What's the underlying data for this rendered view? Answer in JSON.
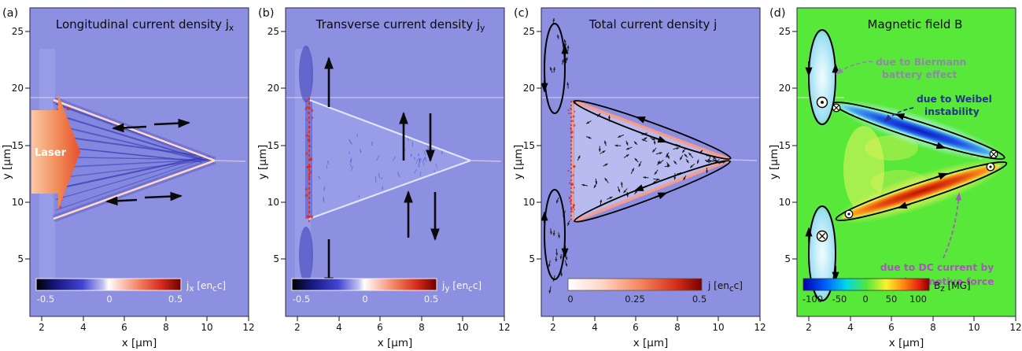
{
  "panels": {
    "a": {
      "label": "(a)",
      "title_1": "Longitudinal current density j",
      "title_sub": "x",
      "x_label": "x [μm]",
      "y_label": "y [μm]",
      "x_ticks": [
        "2",
        "4",
        "6",
        "8",
        "10",
        "12"
      ],
      "y_ticks": [
        "25",
        "20",
        "15",
        "10",
        "5"
      ],
      "laser_label": "Laser",
      "cb_ticks": [
        "-0.5",
        "0",
        "0.5"
      ],
      "cb_p1": "j",
      "cb_s1": "x",
      "cb_p2": " [en",
      "cb_s2": "c",
      "cb_p3": "c]"
    },
    "b": {
      "label": "(b)",
      "title_1": "Transverse current density j",
      "title_sub": "y",
      "x_label": "x [μm]",
      "y_label": "y [μm]",
      "x_ticks": [
        "2",
        "4",
        "6",
        "8",
        "10",
        "12"
      ],
      "y_ticks": [
        "25",
        "20",
        "15",
        "10",
        "5"
      ],
      "cb_ticks": [
        "-0.5",
        "0",
        "0.5"
      ],
      "cb_p1": "j",
      "cb_s1": "y",
      "cb_p2": " [en",
      "cb_s2": "c",
      "cb_p3": "c]"
    },
    "c": {
      "label": "(c)",
      "title_1": "Total current density j",
      "x_label": "x [μm]",
      "y_label": "y [μm]",
      "x_ticks": [
        "2",
        "4",
        "6",
        "8",
        "10",
        "12"
      ],
      "y_ticks": [
        "25",
        "20",
        "15",
        "10",
        "5"
      ],
      "cb_ticks": [
        "0",
        "0.25",
        "0.5"
      ],
      "cb_p1": "j [en",
      "cb_s1": "c",
      "cb_p2": "c]"
    },
    "d": {
      "label": "(d)",
      "title_1": "Magnetic field B",
      "x_label": "x [μm]",
      "y_label": "y [μm]",
      "x_ticks": [
        "2",
        "4",
        "6",
        "8",
        "10",
        "12"
      ],
      "y_ticks": [
        "25",
        "20",
        "15",
        "10",
        "5"
      ],
      "cb_ticks": [
        "-100",
        "-50",
        "0",
        "50",
        "100"
      ],
      "cb_p1": "B",
      "cb_s1": "z",
      "cb_p2": " [MG]",
      "ann_biermann_1": "due to Biermann",
      "ann_biermann_2": "battery effect",
      "ann_weibel_1": "due to Weibel",
      "ann_weibel_2": "instability",
      "ann_pond_1": "due to DC current by",
      "ann_pond_2": "ponderomotive force"
    }
  },
  "colors": {
    "panel_bg_purple": "#8d8fe0",
    "panel_bg_green": "#58e83a",
    "laser_orange": "#f07848",
    "annotation_gray": "#8c8ca0",
    "annotation_navy": "#24348c",
    "annotation_purple": "#a858b8",
    "arrow_black": "#000000",
    "negative_field_blue": "#1e4fe0",
    "positive_field_red": "#e04a10"
  },
  "chart_data": [
    {
      "panel": "(a)",
      "type": "heatmap",
      "title": "Longitudinal current density j_x",
      "xlabel": "x [μm]",
      "ylabel": "y [μm]",
      "x_ticks": [
        2,
        4,
        6,
        8,
        10,
        12
      ],
      "y_ticks": [
        5,
        10,
        15,
        20,
        25
      ],
      "x_range": [
        1.5,
        12
      ],
      "y_range": [
        2.5,
        27
      ],
      "colorbar": {
        "label": "j_x [e n_c c]",
        "ticks": [
          -0.5,
          0,
          0.5
        ],
        "range": [
          -0.5,
          0.5
        ],
        "colormap": "black-blue-white-red-darkred"
      },
      "features": [
        "laser arrow entering from left between y≈10 and y≈18 μm",
        "cone-shaped filamentary current structure from x≈3 μm converging to apex at x≈10 μm, y≈13.5 μm",
        "black horizontal arrow pairs marking counter-streaming longitudinal currents near upper and lower cone edges"
      ]
    },
    {
      "panel": "(b)",
      "type": "heatmap",
      "title": "Transverse current density j_y",
      "xlabel": "x [μm]",
      "ylabel": "y [μm]",
      "x_ticks": [
        2,
        4,
        6,
        8,
        10,
        12
      ],
      "y_ticks": [
        5,
        10,
        15,
        20,
        25
      ],
      "colorbar": {
        "label": "j_y [e n_c c]",
        "ticks": [
          -0.5,
          0,
          0.5
        ],
        "range": [
          -0.5,
          0.5
        ],
        "colormap": "black-blue-white-red-darkred"
      },
      "features": [
        "red layer at target front x≈2.5 μm",
        "black vertical arrows marking up/down transverse currents at the target surface and inside the cone"
      ]
    },
    {
      "panel": "(c)",
      "type": "heatmap",
      "title": "Total current density j",
      "xlabel": "x [μm]",
      "ylabel": "y [μm]",
      "x_ticks": [
        2,
        4,
        6,
        8,
        10,
        12
      ],
      "y_ticks": [
        5,
        10,
        15,
        20,
        25
      ],
      "colorbar": {
        "label": "j [e n_c c]",
        "ticks": [
          0,
          0.25,
          0.5
        ],
        "range": [
          0,
          0.5
        ],
        "colormap": "white-red-darkred"
      },
      "features": [
        "quiver arrows of the current vector field",
        "two vertical closed current loops at the target surface (y≈18-25 μm and y≈4-11 μm)",
        "elongated closed current loops along both cone edges meeting at the apex near x≈10 μm"
      ]
    },
    {
      "panel": "(d)",
      "type": "heatmap",
      "title": "Magnetic field B",
      "xlabel": "x [μm]",
      "ylabel": "y [μm]",
      "x_ticks": [
        2,
        4,
        6,
        8,
        10,
        12
      ],
      "y_ticks": [
        5,
        10,
        15,
        20,
        25
      ],
      "colorbar": {
        "label": "B_z [MG]",
        "ticks": [
          -100,
          -50,
          0,
          50,
          100
        ],
        "range": [
          -120,
          120
        ],
        "colormap": "jet, green background = 0"
      },
      "features": [
        "negative B_z (blue) filament along the upper cone edge enclosed by a current loop with into/out-of-page symbols",
        "positive B_z (red/orange) filament along the lower cone edge enclosed by a current loop",
        "two Biermann-battery field ovals at the target front with ⊙ and ⊗ polarity symbols"
      ],
      "annotations": [
        "due to Biermann battery effect",
        "due to Weibel instability",
        "due to DC current by ponderomotive force"
      ]
    }
  ]
}
